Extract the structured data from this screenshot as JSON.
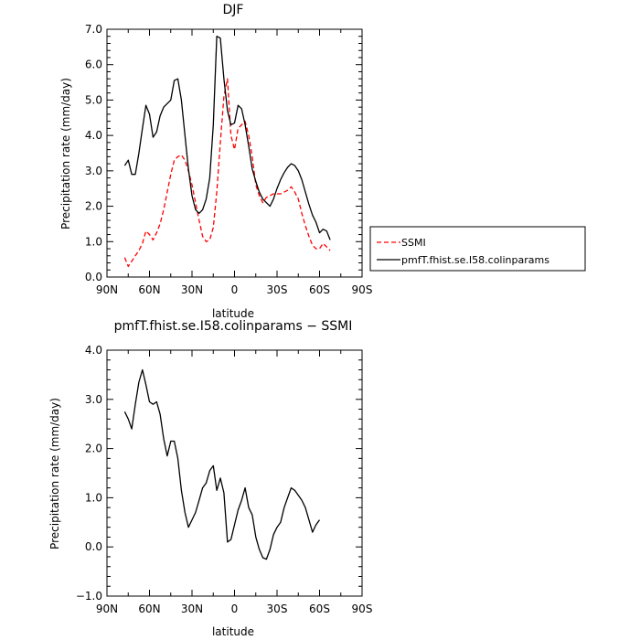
{
  "chart_data": [
    {
      "type": "line",
      "title": "DJF",
      "xlabel": "latitude",
      "ylabel": "Precipitation rate (mm/day)",
      "x_ticks": [
        "90N",
        "60N",
        "30N",
        "0",
        "30S",
        "60S",
        "90S"
      ],
      "y_ticks": [
        "0.0",
        "1.0",
        "2.0",
        "3.0",
        "4.0",
        "5.0",
        "6.0",
        "7.0"
      ],
      "xlim": [
        90,
        -90
      ],
      "ylim": [
        0,
        7
      ],
      "grid": false,
      "legend_position": "right",
      "series": [
        {
          "name": "SSMI",
          "color": "#ff0000",
          "dash": "dashed",
          "x": [
            77.5,
            75,
            72.5,
            70,
            67.5,
            65,
            62.5,
            60,
            57.5,
            55,
            52.5,
            50,
            47.5,
            45,
            42.5,
            40,
            37.5,
            35,
            32.5,
            30,
            27.5,
            25,
            22.5,
            20,
            17.5,
            15,
            12.5,
            10,
            7.5,
            5,
            2.5,
            0,
            -2.5,
            -5,
            -7.5,
            -10,
            -12.5,
            -15,
            -17.5,
            -20,
            -22.5,
            -25,
            -27.5,
            -30,
            -32.5,
            -35,
            -37.5,
            -40,
            -42.5,
            -45,
            -47.5,
            -50,
            -52.5,
            -55,
            -57.5,
            -60,
            -62.5,
            -65,
            -67.5,
            -70,
            -72.5,
            -75,
            -77.5
          ],
          "y": [
            0.55,
            0.3,
            0.45,
            0.6,
            0.75,
            0.95,
            1.3,
            1.2,
            1.05,
            1.25,
            1.5,
            1.9,
            2.4,
            2.9,
            3.3,
            3.4,
            3.45,
            3.3,
            3.0,
            2.6,
            2.1,
            1.6,
            1.15,
            1.0,
            1.05,
            1.4,
            2.4,
            3.8,
            5.1,
            5.6,
            4.0,
            3.6,
            4.2,
            4.3,
            4.4,
            4.0,
            3.4,
            2.6,
            2.3,
            2.1,
            2.25,
            2.3,
            2.35,
            2.35,
            2.35,
            2.4,
            2.45,
            2.55,
            2.4,
            2.2,
            1.8,
            1.45,
            1.15,
            0.9,
            0.8,
            0.8,
            0.95,
            0.85,
            0.75,
            null,
            null,
            null,
            null
          ]
        },
        {
          "name": "pmfT.fhist.se.I58.colinparams",
          "color": "#000000",
          "dash": "solid",
          "x": [
            77.5,
            75,
            72.5,
            70,
            67.5,
            65,
            62.5,
            60,
            57.5,
            55,
            52.5,
            50,
            47.5,
            45,
            42.5,
            40,
            37.5,
            35,
            32.5,
            30,
            27.5,
            25,
            22.5,
            20,
            17.5,
            15,
            12.5,
            10,
            7.5,
            5,
            2.5,
            0,
            -2.5,
            -5,
            -7.5,
            -10,
            -12.5,
            -15,
            -17.5,
            -20,
            -22.5,
            -25,
            -27.5,
            -30,
            -32.5,
            -35,
            -37.5,
            -40,
            -42.5,
            -45,
            -47.5,
            -50,
            -52.5,
            -55,
            -57.5,
            -60,
            -62.5,
            -65,
            -67.5,
            -70,
            -72.5,
            -75,
            -77.5
          ],
          "y": [
            3.15,
            3.3,
            2.9,
            2.9,
            3.5,
            4.2,
            4.85,
            4.6,
            3.95,
            4.1,
            4.55,
            4.8,
            4.9,
            5.0,
            5.55,
            5.6,
            5.0,
            4.0,
            3.05,
            2.3,
            1.9,
            1.8,
            1.9,
            2.2,
            2.8,
            4.3,
            6.8,
            6.75,
            5.6,
            4.7,
            4.3,
            4.35,
            4.85,
            4.75,
            4.3,
            3.7,
            3.05,
            2.7,
            2.4,
            2.2,
            2.1,
            2.0,
            2.2,
            2.5,
            2.75,
            2.95,
            3.1,
            3.2,
            3.15,
            3.0,
            2.75,
            2.4,
            2.05,
            1.75,
            1.55,
            1.25,
            1.35,
            1.3,
            1.05,
            null,
            null,
            null,
            null
          ]
        }
      ]
    },
    {
      "type": "line",
      "title": "pmfT.fhist.se.I58.colinparams − SSMI",
      "xlabel": "latitude",
      "ylabel": "Precipitation rate (mm/day)",
      "x_ticks": [
        "90N",
        "60N",
        "30N",
        "0",
        "30S",
        "60S",
        "90S"
      ],
      "y_ticks": [
        "−1.0",
        "0.0",
        "1.0",
        "2.0",
        "3.0",
        "4.0"
      ],
      "xlim": [
        90,
        -90
      ],
      "ylim": [
        -1,
        4
      ],
      "grid": false,
      "series": [
        {
          "color": "#000000",
          "dash": "solid",
          "x": [
            77.5,
            75,
            72.5,
            70,
            67.5,
            65,
            62.5,
            60,
            57.5,
            55,
            52.5,
            50,
            47.5,
            45,
            42.5,
            40,
            37.5,
            35,
            32.5,
            30,
            27.5,
            25,
            22.5,
            20,
            17.5,
            15,
            12.5,
            10,
            7.5,
            5,
            2.5,
            0,
            -2.5,
            -5,
            -7.5,
            -10,
            -12.5,
            -15,
            -17.5,
            -20,
            -22.5,
            -25,
            -27.5,
            -30,
            -32.5,
            -35,
            -37.5,
            -40,
            -42.5,
            -45,
            -47.5,
            -50,
            -52.5,
            -55,
            -57.5,
            -60,
            -62.5,
            -65,
            -67.5,
            -70,
            -72.5,
            -75,
            -77.5
          ],
          "y": [
            2.75,
            2.6,
            2.4,
            2.9,
            3.35,
            3.6,
            3.3,
            2.95,
            2.9,
            2.95,
            2.7,
            2.2,
            1.85,
            2.15,
            2.15,
            1.8,
            1.15,
            0.7,
            0.4,
            0.55,
            0.7,
            0.95,
            1.2,
            1.3,
            1.55,
            1.65,
            1.15,
            1.4,
            1.1,
            0.1,
            0.15,
            0.45,
            0.75,
            0.95,
            1.2,
            0.8,
            0.65,
            0.2,
            -0.05,
            -0.22,
            -0.25,
            -0.05,
            0.25,
            0.4,
            0.5,
            0.8,
            1.0,
            1.2,
            1.15,
            1.05,
            0.95,
            0.8,
            0.55,
            0.3,
            0.45,
            0.55,
            null,
            null,
            null,
            null,
            null,
            null,
            null
          ]
        }
      ]
    }
  ]
}
